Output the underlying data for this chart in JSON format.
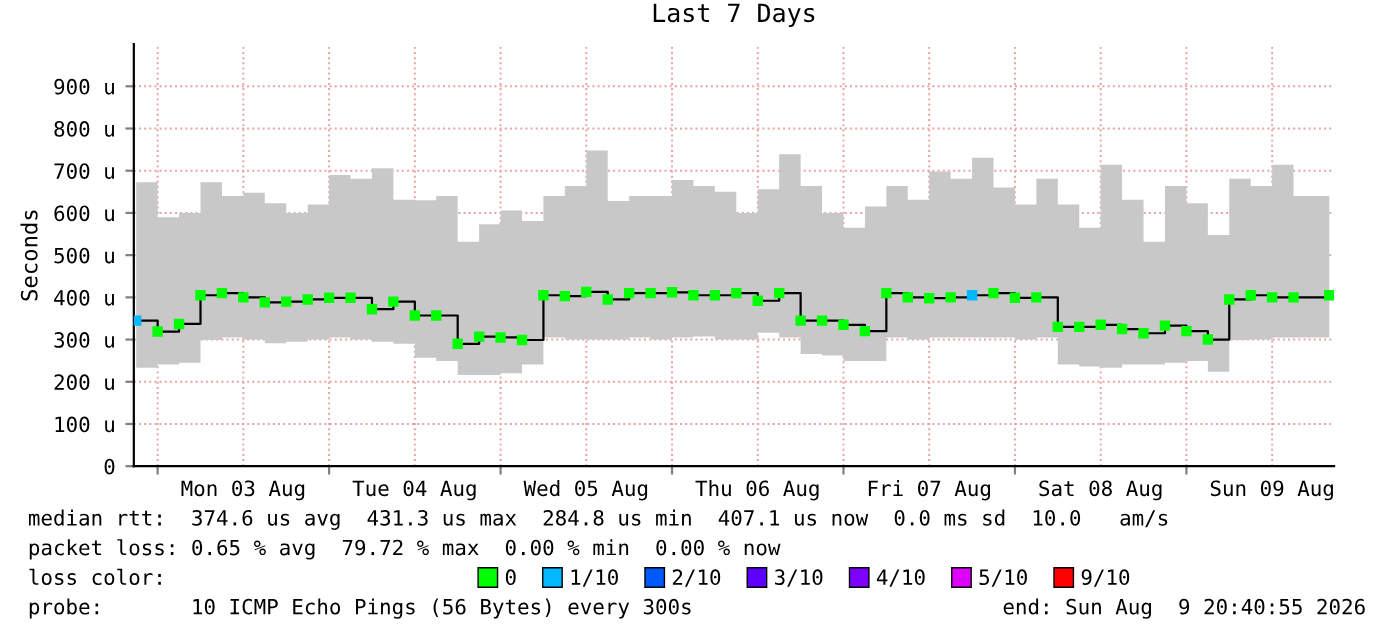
{
  "chart_data": {
    "type": "step",
    "title": "Last 7 Days",
    "ylabel": "Seconds",
    "x": [
      "2026-08-02T21:00",
      "2026-08-03T00:00",
      "2026-08-03T03:00",
      "2026-08-03T06:00",
      "2026-08-03T09:00",
      "2026-08-03T12:00",
      "2026-08-03T15:00",
      "2026-08-03T18:00",
      "2026-08-03T21:00",
      "2026-08-04T00:00",
      "2026-08-04T03:00",
      "2026-08-04T06:00",
      "2026-08-04T09:00",
      "2026-08-04T12:00",
      "2026-08-04T15:00",
      "2026-08-04T18:00",
      "2026-08-04T21:00",
      "2026-08-05T00:00",
      "2026-08-05T03:00",
      "2026-08-05T06:00",
      "2026-08-05T09:00",
      "2026-08-05T12:00",
      "2026-08-05T15:00",
      "2026-08-05T18:00",
      "2026-08-05T21:00",
      "2026-08-06T00:00",
      "2026-08-06T03:00",
      "2026-08-06T06:00",
      "2026-08-06T09:00",
      "2026-08-06T12:00",
      "2026-08-06T15:00",
      "2026-08-06T18:00",
      "2026-08-06T21:00",
      "2026-08-07T00:00",
      "2026-08-07T03:00",
      "2026-08-07T06:00",
      "2026-08-07T09:00",
      "2026-08-07T12:00",
      "2026-08-07T15:00",
      "2026-08-07T18:00",
      "2026-08-07T21:00",
      "2026-08-08T00:00",
      "2026-08-08T03:00",
      "2026-08-08T06:00",
      "2026-08-08T09:00",
      "2026-08-08T12:00",
      "2026-08-08T15:00",
      "2026-08-08T18:00",
      "2026-08-08T21:00",
      "2026-08-09T00:00",
      "2026-08-09T03:00",
      "2026-08-09T06:00",
      "2026-08-09T09:00",
      "2026-08-09T12:00",
      "2026-08-09T15:00",
      "2026-08-09T20:00"
    ],
    "series": [
      {
        "color": "#000000",
        "values": [
          345,
          319,
          337,
          405,
          410,
          400,
          388,
          390,
          395,
          399,
          399,
          372,
          390,
          357,
          357,
          290,
          307,
          305,
          299,
          405,
          403,
          413,
          395,
          410,
          410,
          412,
          405,
          405,
          410,
          392,
          410,
          345,
          345,
          335,
          320,
          410,
          400,
          398,
          400,
          405,
          410,
          399,
          400,
          330,
          330,
          335,
          325,
          315,
          333,
          320,
          300,
          395,
          405,
          400,
          400,
          405
        ],
        "lower": [
          233,
          241,
          245,
          299,
          305,
          300,
          291,
          295,
          300,
          305,
          300,
          295,
          290,
          257,
          249,
          216,
          216,
          220,
          241,
          305,
          300,
          300,
          300,
          305,
          300,
          305,
          307,
          300,
          300,
          316,
          305,
          266,
          262,
          249,
          249,
          305,
          300,
          305,
          305,
          305,
          305,
          300,
          305,
          241,
          236,
          233,
          241,
          241,
          245,
          249,
          224,
          299,
          300,
          305,
          305,
          307
        ],
        "upper": [
          673,
          590,
          600,
          673,
          640,
          648,
          623,
          600,
          620,
          690,
          681,
          706,
          631,
          630,
          640,
          532,
          573,
          606,
          581,
          640,
          664,
          748,
          628,
          640,
          640,
          678,
          664,
          650,
          600,
          656,
          739,
          664,
          600,
          565,
          615,
          664,
          631,
          698,
          681,
          731,
          660,
          620,
          681,
          620,
          565,
          714,
          631,
          532,
          664,
          623,
          548,
          681,
          664,
          714,
          640,
          656
        ]
      },
      {
        "type": "scatter",
        "marker": "square",
        "name": "0",
        "color": "#00ff00",
        "values": [
          null,
          319,
          337,
          405,
          410,
          400,
          388,
          390,
          395,
          399,
          399,
          372,
          390,
          357,
          357,
          290,
          307,
          305,
          299,
          405,
          403,
          413,
          395,
          410,
          410,
          412,
          405,
          405,
          410,
          392,
          410,
          345,
          345,
          335,
          320,
          410,
          400,
          398,
          400,
          null,
          410,
          399,
          400,
          330,
          330,
          335,
          325,
          315,
          333,
          320,
          300,
          395,
          405,
          400,
          400,
          405
        ]
      },
      {
        "type": "scatter",
        "marker": "square",
        "name": "1/10",
        "color": "#00b8ff",
        "values": [
          345,
          null,
          null,
          null,
          null,
          null,
          null,
          null,
          null,
          null,
          null,
          null,
          null,
          null,
          null,
          null,
          null,
          null,
          null,
          null,
          null,
          null,
          null,
          null,
          null,
          null,
          null,
          null,
          null,
          null,
          null,
          null,
          null,
          null,
          null,
          null,
          null,
          null,
          null,
          405,
          null,
          null,
          null,
          null,
          null,
          null,
          null,
          null,
          null,
          null,
          null,
          null,
          null,
          null,
          null,
          null
        ]
      },
      {
        "type": "scatter",
        "marker": "square",
        "name": "2/10",
        "color": "#0059ff",
        "values": [
          null,
          null,
          null,
          null,
          null,
          null,
          null,
          null,
          null,
          null,
          null,
          null,
          null,
          null,
          null,
          null,
          null,
          null,
          null,
          null,
          null,
          null,
          null,
          null,
          null,
          null,
          null,
          null,
          null,
          null,
          null,
          null,
          null,
          null,
          null,
          null,
          null,
          null,
          null,
          null,
          null,
          null,
          null,
          null,
          null,
          null,
          null,
          null,
          null,
          null,
          null,
          null,
          null,
          null,
          null,
          null
        ]
      },
      {
        "type": "scatter",
        "marker": "square",
        "name": "3/10",
        "color": "#5e00ff",
        "values": [
          null,
          null,
          null,
          null,
          null,
          null,
          null,
          null,
          null,
          null,
          null,
          null,
          null,
          null,
          null,
          null,
          null,
          null,
          null,
          null,
          null,
          null,
          null,
          null,
          null,
          null,
          null,
          null,
          null,
          null,
          null,
          null,
          null,
          null,
          null,
          null,
          null,
          null,
          null,
          null,
          null,
          null,
          null,
          null,
          null,
          null,
          null,
          null,
          null,
          null,
          null,
          null,
          null,
          null,
          null,
          null
        ]
      },
      {
        "type": "scatter",
        "marker": "square",
        "name": "4/10",
        "color": "#7e00ff",
        "values": [
          null,
          null,
          null,
          null,
          null,
          null,
          null,
          null,
          null,
          null,
          null,
          null,
          null,
          null,
          null,
          null,
          null,
          null,
          null,
          null,
          null,
          null,
          null,
          null,
          null,
          null,
          null,
          null,
          null,
          null,
          null,
          null,
          null,
          null,
          null,
          null,
          null,
          null,
          null,
          null,
          null,
          null,
          null,
          null,
          null,
          null,
          null,
          null,
          null,
          null,
          null,
          null,
          null,
          null,
          null,
          null
        ]
      },
      {
        "type": "scatter",
        "marker": "square",
        "name": "5/10",
        "color": "#dd00ff",
        "values": [
          null,
          null,
          null,
          null,
          null,
          null,
          null,
          null,
          null,
          null,
          null,
          null,
          null,
          null,
          null,
          null,
          null,
          null,
          null,
          null,
          null,
          null,
          null,
          null,
          null,
          null,
          null,
          null,
          null,
          null,
          null,
          null,
          null,
          null,
          null,
          null,
          null,
          null,
          null,
          null,
          null,
          null,
          null,
          null,
          null,
          null,
          null,
          null,
          null,
          null,
          null,
          null,
          null,
          null,
          null,
          null
        ]
      },
      {
        "type": "scatter",
        "marker": "square",
        "name": "9/10",
        "color": "#ff0000",
        "values": [
          null,
          null,
          null,
          null,
          null,
          null,
          null,
          null,
          null,
          null,
          null,
          null,
          null,
          null,
          null,
          null,
          null,
          null,
          null,
          null,
          null,
          null,
          null,
          null,
          null,
          null,
          null,
          null,
          null,
          null,
          null,
          null,
          null,
          null,
          null,
          null,
          null,
          null,
          null,
          null,
          null,
          null,
          null,
          null,
          null,
          null,
          null,
          null,
          null,
          null,
          null,
          null,
          null,
          null,
          null,
          null
        ]
      }
    ],
    "legend": "bottom",
    "legend_title": "loss color:",
    "grid": true,
    "xlim": [
      "2026-08-02T20:40",
      "2026-08-09T20:40"
    ],
    "xticks": [
      {
        "value": "2026-08-03T00:00",
        "label": null
      },
      {
        "value": "2026-08-03T12:00",
        "label": "Mon 03 Aug"
      },
      {
        "value": "2026-08-04T00:00",
        "label": null
      },
      {
        "value": "2026-08-04T12:00",
        "label": "Tue 04 Aug"
      },
      {
        "value": "2026-08-05T00:00",
        "label": null
      },
      {
        "value": "2026-08-05T12:00",
        "label": "Wed 05 Aug"
      },
      {
        "value": "2026-08-06T00:00",
        "label": null
      },
      {
        "value": "2026-08-06T12:00",
        "label": "Thu 06 Aug"
      },
      {
        "value": "2026-08-07T00:00",
        "label": null
      },
      {
        "value": "2026-08-07T12:00",
        "label": "Fri 07 Aug"
      },
      {
        "value": "2026-08-08T00:00",
        "label": null
      },
      {
        "value": "2026-08-08T12:00",
        "label": "Sat 08 Aug"
      },
      {
        "value": "2026-08-09T00:00",
        "label": null
      },
      {
        "value": "2026-08-09T12:00",
        "label": "Sun 09 Aug"
      }
    ],
    "ylim": [
      0,
      1000
    ],
    "yticks": [
      0,
      {
        "value": 100,
        "label": "100 u"
      },
      {
        "value": 200,
        "label": "200 u"
      },
      {
        "value": 300,
        "label": "300 u"
      },
      {
        "value": 400,
        "label": "400 u"
      },
      {
        "value": 500,
        "label": "500 u"
      },
      {
        "value": 600,
        "label": "600 u"
      },
      {
        "value": 700,
        "label": "700 u"
      },
      {
        "value": 800,
        "label": "800 u"
      },
      {
        "value": 900,
        "label": "900 u"
      }
    ],
    "annotations": [
      "median rtt:  374.6 us avg  431.3 us max  284.8 us min  407.1 us now  0.0 ms sd  10.0   am/s",
      "packet loss: 0.65 % avg  79.72 % max  0.00 % min  0.00 % now",
      "probe:       10 ICMP Echo Pings (56 Bytes) every 300s",
      "end: Sun Aug  9 20:40:55 2026"
    ]
  }
}
